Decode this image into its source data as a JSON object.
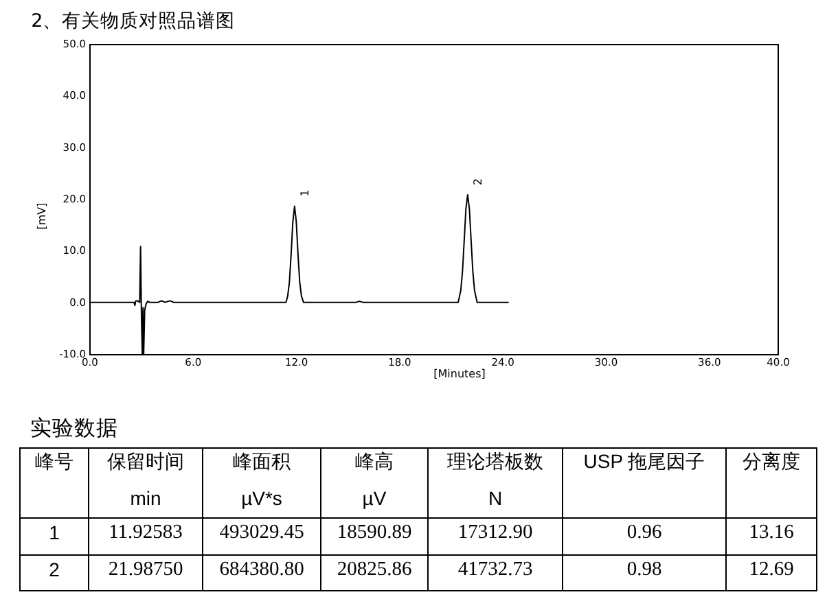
{
  "chart_data": {
    "type": "line",
    "title": "2、有关物质对照品谱图",
    "xlabel": "[Minutes]",
    "ylabel": "[mV]",
    "x": [
      0,
      2.6,
      2.65,
      2.7,
      2.8,
      2.93,
      2.98,
      3.03,
      3.08,
      3.12,
      3.16,
      3.22,
      3.3,
      3.4,
      3.5,
      4.0,
      4.2,
      4.4,
      4.7,
      4.9,
      5.6,
      11.43,
      11.53,
      11.63,
      11.73,
      11.83,
      11.93,
      12.03,
      12.13,
      12.23,
      12.33,
      12.45,
      15.5,
      15.7,
      15.9,
      21.44,
      21.59,
      21.69,
      21.79,
      21.89,
      21.99,
      22.09,
      22.19,
      22.29,
      22.39,
      22.54,
      24.35
    ],
    "series": [
      {
        "color": "#000000",
        "values": [
          0,
          0,
          -0.6,
          0.3,
          0.3,
          0,
          10.8,
          -2.5,
          -10,
          -1,
          -10,
          -1.5,
          -0.3,
          0.2,
          0,
          0,
          0.3,
          0,
          0.3,
          0,
          0,
          0,
          1.2,
          3.9,
          9.3,
          15.6,
          18.6,
          15.6,
          9.3,
          3.9,
          1.2,
          0,
          0,
          0.2,
          0,
          0,
          2.3,
          6.0,
          12.0,
          18.1,
          20.8,
          18.1,
          12.0,
          6.0,
          2.3,
          0,
          0
        ]
      }
    ],
    "xlim": [
      0,
      40
    ],
    "ylim": [
      -10,
      50
    ],
    "xticks": [
      {
        "value": 0,
        "label": "0.0"
      },
      {
        "value": 6,
        "label": "6.0"
      },
      {
        "value": 12,
        "label": "12.0"
      },
      {
        "value": 18,
        "label": "18.0"
      },
      {
        "value": 24,
        "label": "24.0"
      },
      {
        "value": 30,
        "label": "30.0"
      },
      {
        "value": 36,
        "label": "36.0"
      },
      {
        "value": 40,
        "label": "40.0"
      }
    ],
    "yticks": [
      {
        "value": -10,
        "label": "-10.0"
      },
      {
        "value": 0,
        "label": "0.0"
      },
      {
        "value": 10,
        "label": "10.0"
      },
      {
        "value": 20,
        "label": "20.0"
      },
      {
        "value": 30,
        "label": "30.0"
      },
      {
        "value": 40,
        "label": "40.0"
      },
      {
        "value": 50,
        "label": "50.0"
      }
    ],
    "grid": false,
    "line_style": "solid",
    "annotations": [
      "实验数据",
      "峰号",
      "保留时间\nmin",
      "峰面积\nµV*s",
      "峰高\nµV",
      "理论塔板数\nN",
      "USP 拖尾因子",
      "分离度",
      "1",
      "11.92583",
      "493029.45",
      "18590.89",
      "17312.90",
      "0.96",
      "13.16",
      "2",
      "21.98750",
      "684380.80",
      "20825.86",
      "41732.73",
      "0.98",
      "12.69",
      {
        "text": "1",
        "x": 11.93,
        "y": 18.6
      },
      {
        "text": "2",
        "x": 21.99,
        "y": 20.8
      }
    ]
  }
}
